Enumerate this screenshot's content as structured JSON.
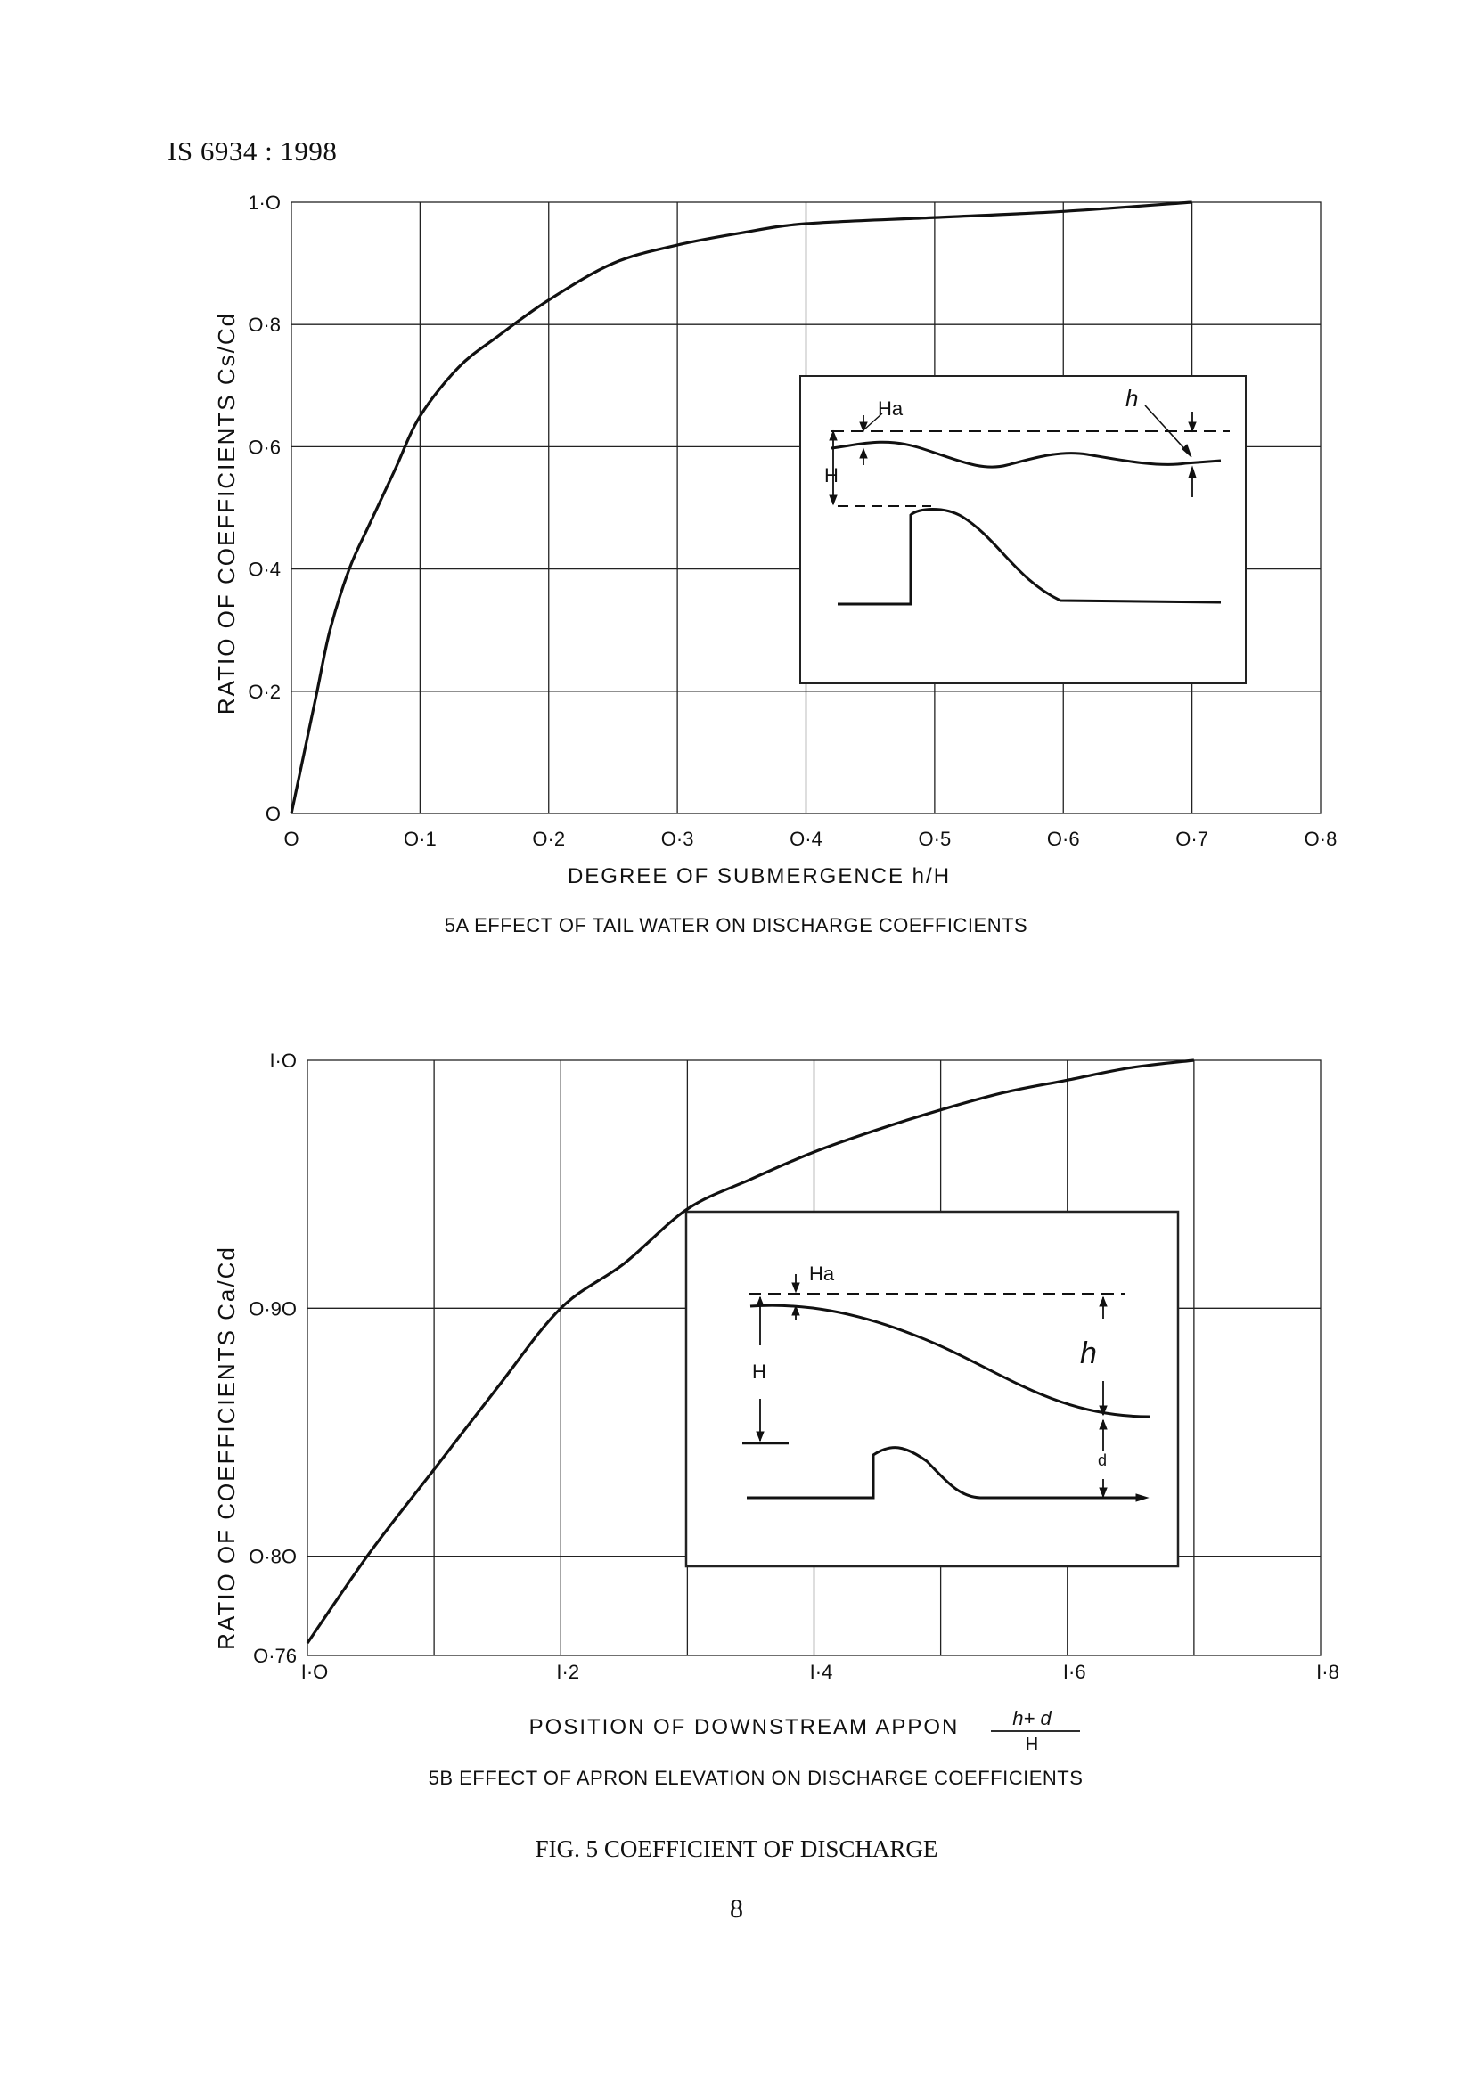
{
  "header": "IS 6934 : 1998",
  "figure_caption": "FIG. 5 COEFFICIENT OF DISCHARGE",
  "page_number": "8",
  "chart_data": [
    {
      "type": "line",
      "title": "5A  EFFECT OF TAIL WATER ON DISCHARGE COEFFICIENTS",
      "xlabel": "DEGREE OF SUBMERGENCE h/H",
      "ylabel": "RATIO OF COEFFICIENTS Cs/Cd",
      "xlim": [
        0,
        0.8
      ],
      "ylim": [
        0,
        1.0
      ],
      "xticks": [
        0,
        0.1,
        0.2,
        0.3,
        0.4,
        0.5,
        0.6,
        0.7,
        0.8
      ],
      "xtick_labels": [
        "O",
        "O·1",
        "O·2",
        "O·3",
        "O·4",
        "O·5",
        "O·6",
        "O·7",
        "O·8"
      ],
      "yticks": [
        0,
        0.2,
        0.4,
        0.6,
        0.8,
        1.0
      ],
      "ytick_labels": [
        "O",
        "O·2",
        "O·4",
        "O·6",
        "O·8",
        "1·O"
      ],
      "grid": true,
      "x": [
        0,
        0.01,
        0.02,
        0.03,
        0.045,
        0.06,
        0.08,
        0.1,
        0.13,
        0.16,
        0.2,
        0.25,
        0.3,
        0.35,
        0.4,
        0.5,
        0.6,
        0.7
      ],
      "y": [
        0,
        0.1,
        0.2,
        0.3,
        0.4,
        0.47,
        0.56,
        0.65,
        0.73,
        0.78,
        0.84,
        0.9,
        0.93,
        0.95,
        0.965,
        0.975,
        0.985,
        1.0
      ],
      "inset_labels": [
        "Ha",
        "h",
        "H"
      ]
    },
    {
      "type": "line",
      "title": "5B EFFECT OF APRON ELEVATION ON DISCHARGE COEFFICIENTS",
      "xlabel": "POSITION OF DOWNSTREAM APPON",
      "xlabel_fraction": {
        "numerator": "h+ d",
        "denominator": "H"
      },
      "ylabel": "RATIO OF COEFFICIENTS Ca/Cd",
      "xlim": [
        1.0,
        1.8
      ],
      "ylim": [
        0.76,
        1.0
      ],
      "xticks": [
        1.0,
        1.2,
        1.4,
        1.6,
        1.8
      ],
      "xtick_labels": [
        "I·O",
        "I·2",
        "I·4",
        "I·6",
        "I·8"
      ],
      "yticks": [
        0.76,
        0.8,
        0.9,
        1.0
      ],
      "ytick_labels": [
        "O·76",
        "O·8O",
        "O·9O",
        "I·O"
      ],
      "grid": true,
      "x": [
        1.0,
        1.05,
        1.1,
        1.15,
        1.2,
        1.25,
        1.3,
        1.35,
        1.4,
        1.45,
        1.5,
        1.55,
        1.6,
        1.65,
        1.7
      ],
      "y": [
        0.765,
        0.802,
        0.835,
        0.868,
        0.9,
        0.918,
        0.94,
        0.952,
        0.963,
        0.972,
        0.98,
        0.987,
        0.992,
        0.997,
        1.0
      ],
      "inset_labels": [
        "Ha",
        "h",
        "H",
        "d"
      ]
    }
  ]
}
